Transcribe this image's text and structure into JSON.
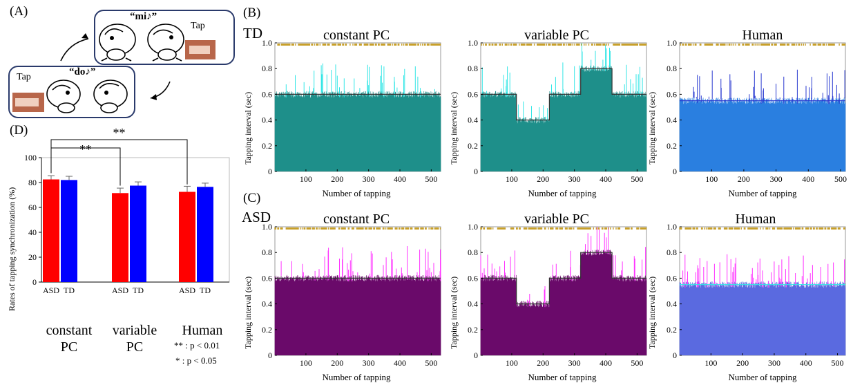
{
  "panels": {
    "A": {
      "label": "(A)",
      "top_utterance": "“mi♪”",
      "bottom_utterance": "“do♪”",
      "tap_top": "Tap",
      "tap_bottom": "Tap"
    },
    "B": {
      "label": "(B)",
      "group": "TD"
    },
    "C": {
      "label": "(C)",
      "group": "ASD"
    },
    "D": {
      "label": "(D)",
      "ylabel": "Rates of tapping synchronization (%)",
      "group_labels": [
        "constant PC",
        "variable PC",
        "Human"
      ],
      "group_labels_lines": [
        [
          "constant",
          "PC"
        ],
        [
          "variable",
          "PC"
        ],
        [
          "Human",
          ""
        ]
      ],
      "bar_labels": [
        "ASD",
        "TD"
      ],
      "legend_double": "** : p < 0.01",
      "legend_single": "* : p < 0.05",
      "sig_double": "**",
      "sig_single": "*"
    }
  },
  "chart_data": [
    {
      "id": "D",
      "type": "bar",
      "categories": [
        "constant PC",
        "variable PC",
        "Human"
      ],
      "series": [
        {
          "name": "ASD",
          "values": [
            82.5,
            71.5,
            72.5
          ],
          "errors": [
            3,
            4,
            4.5
          ],
          "color": "#ff0000"
        },
        {
          "name": "TD",
          "values": [
            82,
            77.5,
            76.5
          ],
          "errors": [
            3,
            3,
            3
          ],
          "color": "#0000ff"
        }
      ],
      "ylabel": "Rates of tapping synchronization (%)",
      "ylim": [
        0,
        100
      ],
      "yticks": [
        0,
        20,
        40,
        60,
        80,
        100
      ],
      "significance": [
        {
          "between": [
            "constant PC ASD",
            "variable PC ASD"
          ],
          "label": "**"
        },
        {
          "between": [
            "constant PC ASD",
            "Human ASD"
          ],
          "label": "**"
        },
        {
          "between": [
            "variable PC ASD",
            "variable PC TD"
          ],
          "label": "*"
        },
        {
          "between": [
            "Human ASD",
            "Human TD"
          ],
          "label": "*"
        }
      ]
    },
    {
      "id": "B-constant",
      "type": "bar",
      "title": "constant PC",
      "group": "TD",
      "xlabel": "Number of tapping",
      "ylabel": "Tapping interval (sec)",
      "xlim": [
        1,
        530
      ],
      "ylim": [
        0,
        1.0
      ],
      "xticks": [
        100,
        200,
        300,
        400,
        500
      ],
      "yticks": [
        "0",
        "0.2",
        "0.4",
        "0.6",
        "0.8",
        "1.0"
      ],
      "n_taps": 530,
      "stimulus_interval": [
        {
          "from": 1,
          "to": 530,
          "value": 0.6
        }
      ],
      "colors": {
        "fill": "#1e8f8a",
        "spike": "#33e6e6",
        "target": "#333333",
        "markers": "#c8a02a"
      }
    },
    {
      "id": "B-variable",
      "type": "bar",
      "title": "variable PC",
      "group": "TD",
      "xlabel": "Number of tapping",
      "ylabel": "Tapping interval (sec)",
      "xlim": [
        1,
        530
      ],
      "ylim": [
        0,
        1.0
      ],
      "xticks": [
        100,
        200,
        300,
        400,
        500
      ],
      "yticks": [
        "0",
        "0.2",
        "0.4",
        "0.6",
        "0.8",
        "1.0"
      ],
      "n_taps": 530,
      "stimulus_interval": [
        {
          "from": 1,
          "to": 115,
          "value": 0.6
        },
        {
          "from": 115,
          "to": 220,
          "value": 0.4
        },
        {
          "from": 220,
          "to": 320,
          "value": 0.6
        },
        {
          "from": 320,
          "to": 420,
          "value": 0.8
        },
        {
          "from": 420,
          "to": 530,
          "value": 0.6
        }
      ],
      "colors": {
        "fill": "#1e8f8a",
        "spike": "#33e6e6",
        "target": "#333333",
        "markers": "#c8a02a"
      }
    },
    {
      "id": "B-human",
      "type": "bar",
      "title": "Human",
      "group": "TD",
      "xlabel": "Number of tapping",
      "ylabel": "Tapping interval (sec)",
      "xlim": [
        1,
        515
      ],
      "ylim": [
        0,
        1.0
      ],
      "xticks": [
        100,
        200,
        300,
        400,
        500
      ],
      "yticks": [
        "0",
        "0.2",
        "0.4",
        "0.6",
        "0.8",
        "1.0"
      ],
      "n_taps": 515,
      "stimulus_interval": [
        {
          "from": 1,
          "to": 515,
          "value": 0.55
        }
      ],
      "colors": {
        "fill": "#2a7fe0",
        "spike": "#2a3ad0",
        "target": "#2a3ad0",
        "markers": "#c8a02a"
      }
    },
    {
      "id": "C-constant",
      "type": "bar",
      "title": "constant PC",
      "group": "ASD",
      "xlabel": "Number of tapping",
      "ylabel": "Tapping interval (sec)",
      "xlim": [
        1,
        530
      ],
      "ylim": [
        0,
        1.0
      ],
      "xticks": [
        100,
        200,
        300,
        400,
        500
      ],
      "yticks": [
        "0",
        "0.2",
        "0.4",
        "0.6",
        "0.8",
        "1.0"
      ],
      "n_taps": 530,
      "stimulus_interval": [
        {
          "from": 1,
          "to": 530,
          "value": 0.6
        }
      ],
      "colors": {
        "fill": "#6a0a6a",
        "spike": "#ff33ff",
        "target": "#333333",
        "markers": "#c8a02a"
      }
    },
    {
      "id": "C-variable",
      "type": "bar",
      "title": "variable PC",
      "group": "ASD",
      "xlabel": "Number of tapping",
      "ylabel": "Tapping interval (sec)",
      "xlim": [
        1,
        530
      ],
      "ylim": [
        0,
        1.0
      ],
      "xticks": [
        100,
        200,
        300,
        400,
        500
      ],
      "yticks": [
        "0",
        "0.2",
        "0.4",
        "0.6",
        "0.8",
        "1.0"
      ],
      "n_taps": 530,
      "stimulus_interval": [
        {
          "from": 1,
          "to": 115,
          "value": 0.6
        },
        {
          "from": 115,
          "to": 220,
          "value": 0.4
        },
        {
          "from": 220,
          "to": 320,
          "value": 0.6
        },
        {
          "from": 320,
          "to": 420,
          "value": 0.8
        },
        {
          "from": 420,
          "to": 530,
          "value": 0.6
        }
      ],
      "colors": {
        "fill": "#6a0a6a",
        "spike": "#ff33ff",
        "target": "#333333",
        "markers": "#c8a02a"
      }
    },
    {
      "id": "C-human",
      "type": "bar",
      "title": "Human",
      "group": "ASD",
      "xlabel": "Number of tapping",
      "ylabel": "Tapping interval (sec)",
      "xlim": [
        1,
        525
      ],
      "ylim": [
        0,
        1.0
      ],
      "xticks": [
        100,
        200,
        300,
        400,
        500
      ],
      "yticks": [
        "0",
        "0.2",
        "0.4",
        "0.6",
        "0.8",
        "1.0"
      ],
      "n_taps": 525,
      "stimulus_interval": [
        {
          "from": 1,
          "to": 525,
          "value": 0.55
        }
      ],
      "colors": {
        "fill": "#5a6ae0",
        "spike": "#ff33ff",
        "target": "#33e6e6",
        "markers": "#c8a02a"
      }
    }
  ]
}
